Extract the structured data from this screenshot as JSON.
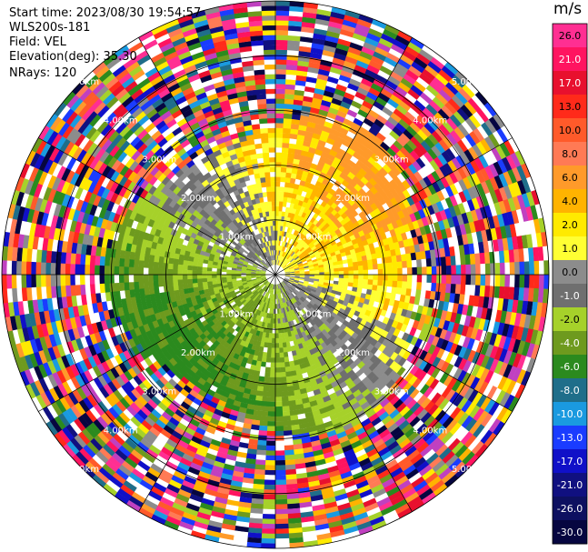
{
  "header": {
    "start_time": "Start time: 2023/08/30 19:54:57",
    "instrument": "WLS200s-181",
    "field": "Field: VEL",
    "elevation": "Elevation(deg): 35.30",
    "nrays": "NRays: 120"
  },
  "colorbar": {
    "unit": "m/s",
    "ticks": [
      "26.0",
      "21.0",
      "17.0",
      "13.0",
      "10.0",
      "8.0",
      "6.0",
      "4.0",
      "2.0",
      "1.0",
      "0.0",
      "-1.0",
      "-2.0",
      "-4.0",
      "-6.0",
      "-8.0",
      "-10.0",
      "-13.0",
      "-17.0",
      "-21.0",
      "-26.0",
      "-30.0"
    ],
    "colors": [
      "#ff2f92",
      "#ff1460",
      "#e8102e",
      "#ff2a1a",
      "#ff5a2a",
      "#ff7a55",
      "#ff9a2a",
      "#ffb300",
      "#ffea00",
      "#ffff33",
      "#8c8c8c",
      "#6f6f6f",
      "#a6d12a",
      "#6e9a1e",
      "#2b8a1e",
      "#1f6e8a",
      "#1a9ae0",
      "#1a3cff",
      "#1010c8",
      "#101080",
      "#0d1060",
      "#060640"
    ]
  },
  "chart_data": {
    "type": "heatmap",
    "title": "",
    "projection": "polar PPI",
    "nrays": 120,
    "range_ring_labels": [
      "1.00km",
      "2.00km",
      "3.00km",
      "4.00km",
      "5.00km"
    ],
    "range_rings_km": [
      1,
      2,
      3,
      4,
      5
    ],
    "max_range_km": 5,
    "colorbar_unit": "m/s",
    "colorbar_range": [
      -30,
      26
    ],
    "notes": "Clean velocity signal within ~3 km: positive (yellow/orange) toward north-east, negative (green) toward south-west, grey near zero; beyond ~3 km noisy random values."
  }
}
